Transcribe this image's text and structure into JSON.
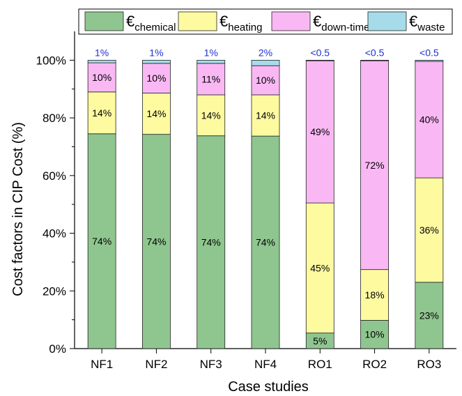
{
  "chart_data": {
    "type": "bar",
    "stacked": true,
    "xlabel": "Case studies",
    "ylabel": "Cost factors in CIP Cost (%)",
    "ylim": [
      0,
      110
    ],
    "y_ticks": [
      "0%",
      "20%",
      "40%",
      "60%",
      "80%",
      "100%"
    ],
    "categories": [
      "NF1",
      "NF2",
      "NF3",
      "NF4",
      "RO1",
      "RO2",
      "RO3"
    ],
    "legend_placement": "top",
    "grid": false,
    "series": [
      {
        "name_main": "€",
        "name_sub": "chemical",
        "color": "#8fc68f",
        "values": [
          74.5,
          74.3,
          73.8,
          73.7,
          5.4,
          9.8,
          23.0
        ],
        "labels": [
          "74%",
          "74%",
          "74%",
          "74%",
          "5%",
          "10%",
          "23%"
        ]
      },
      {
        "name_main": "€",
        "name_sub": "heating",
        "color": "#fdfaa0",
        "values": [
          14.5,
          14.3,
          14.2,
          14.3,
          45.1,
          17.6,
          36.2
        ],
        "labels": [
          "14%",
          "14%",
          "14%",
          "14%",
          "45%",
          "18%",
          "36%"
        ]
      },
      {
        "name_main": "€",
        "name_sub": "down-time",
        "color": "#f9b8f3",
        "values": [
          10.1,
          10.3,
          10.9,
          10.1,
          49.3,
          72.4,
          40.4
        ],
        "labels": [
          "10%",
          "10%",
          "11%",
          "10%",
          "49%",
          "72%",
          "40%"
        ]
      },
      {
        "name_main": "€",
        "name_sub": "waste",
        "color": "#a6dcea",
        "values": [
          0.9,
          1.1,
          1.1,
          1.9,
          0.2,
          0.2,
          0.4
        ],
        "labels": [
          "",
          "",
          "",
          "",
          "",
          "",
          ""
        ]
      }
    ],
    "top_labels": [
      "1%",
      "1%",
      "1%",
      "2%",
      "<0.5",
      "<0.5",
      "<0.5"
    ]
  }
}
